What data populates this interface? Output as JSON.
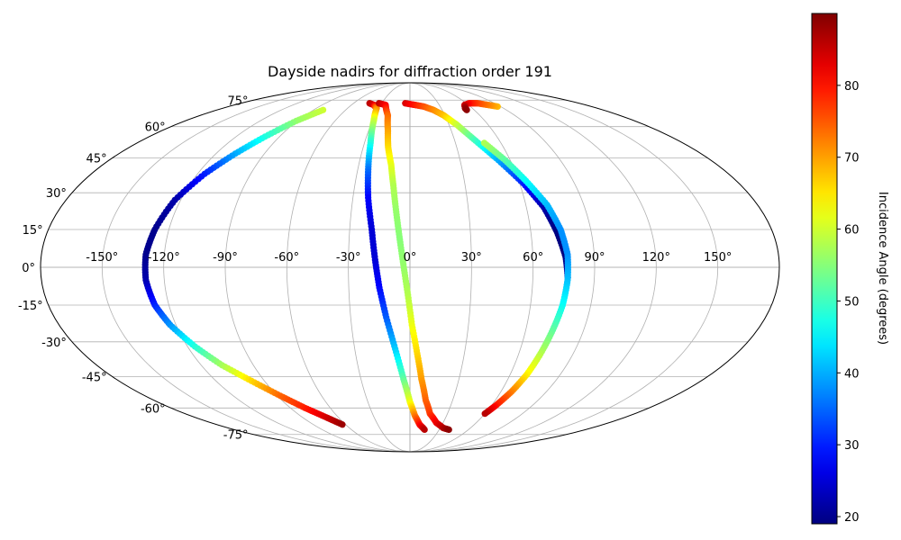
{
  "chart_data": {
    "type": "scatter",
    "projection": "mollweide",
    "title": "Dayside nadirs for diffraction order 191",
    "xlabel": "",
    "ylabel": "",
    "xlim": [
      -180,
      180
    ],
    "ylim": [
      -90,
      90
    ],
    "grid": true,
    "x_ticks": [
      -150,
      -120,
      -90,
      -60,
      -30,
      0,
      30,
      60,
      90,
      120,
      150
    ],
    "x_tick_labels": [
      "-150°",
      "-120°",
      "-90°",
      "-60°",
      "-30°",
      "0°",
      "30°",
      "60°",
      "90°",
      "120°",
      "150°"
    ],
    "y_ticks": [
      75,
      60,
      45,
      30,
      15,
      0,
      -15,
      -30,
      -45,
      -60,
      -75
    ],
    "y_tick_labels": [
      "75°",
      "60°",
      "45°",
      "30°",
      "15°",
      "0°",
      "-15°",
      "-30°",
      "-45°",
      "-60°",
      "-75°"
    ],
    "colormap": "jet",
    "colorbar": {
      "label": "Incidence Angle (degrees)",
      "range": [
        19,
        90
      ],
      "ticks": [
        20,
        30,
        40,
        50,
        60,
        70,
        80
      ],
      "tick_labels": [
        "20",
        "30",
        "40",
        "50",
        "60",
        "70",
        "80"
      ]
    },
    "series": [
      {
        "points": [
          {
            "lon": -81,
            "lat": 69,
            "inc": 60
          },
          {
            "lon": -91,
            "lat": 63,
            "inc": 56
          },
          {
            "lon": -100,
            "lat": 55,
            "inc": 48
          },
          {
            "lon": -108,
            "lat": 47,
            "inc": 40
          },
          {
            "lon": -116,
            "lat": 38,
            "inc": 30
          },
          {
            "lon": -123,
            "lat": 27,
            "inc": 22
          },
          {
            "lon": -127,
            "lat": 15,
            "inc": 20
          },
          {
            "lon": -129,
            "lat": 5,
            "inc": 20
          },
          {
            "lon": -129,
            "lat": -5,
            "inc": 22
          },
          {
            "lon": -127,
            "lat": -15,
            "inc": 30
          },
          {
            "lon": -123,
            "lat": -23,
            "inc": 38
          },
          {
            "lon": -116,
            "lat": -32,
            "inc": 48
          },
          {
            "lon": -108,
            "lat": -40,
            "inc": 57
          },
          {
            "lon": -98,
            "lat": -47,
            "inc": 66
          },
          {
            "lon": -88,
            "lat": -54,
            "inc": 74
          },
          {
            "lon": -79,
            "lat": -60,
            "inc": 79
          },
          {
            "lon": -70,
            "lat": -65,
            "inc": 84
          },
          {
            "lon": -63,
            "lat": -69,
            "inc": 88
          }
        ]
      },
      {
        "points": [
          {
            "lon": -43,
            "lat": 73,
            "inc": 86
          },
          {
            "lon": -37,
            "lat": 72,
            "inc": 84
          },
          {
            "lon": -32,
            "lat": 70,
            "inc": 72
          },
          {
            "lon": -29,
            "lat": 63,
            "inc": 60
          },
          {
            "lon": -26,
            "lat": 52,
            "inc": 48
          },
          {
            "lon": -24,
            "lat": 40,
            "inc": 36
          },
          {
            "lon": -22,
            "lat": 28,
            "inc": 28
          },
          {
            "lon": -19,
            "lat": 15,
            "inc": 25
          },
          {
            "lon": -17,
            "lat": 3,
            "inc": 25
          },
          {
            "lon": -15,
            "lat": -8,
            "inc": 28
          },
          {
            "lon": -12,
            "lat": -20,
            "inc": 34
          },
          {
            "lon": -8,
            "lat": -33,
            "inc": 42
          },
          {
            "lon": -4,
            "lat": -46,
            "inc": 52
          },
          {
            "lon": 0,
            "lat": -57,
            "inc": 62
          },
          {
            "lon": 4,
            "lat": -64,
            "inc": 72
          },
          {
            "lon": 9,
            "lat": -69,
            "inc": 80
          },
          {
            "lon": 15,
            "lat": -72,
            "inc": 86
          }
        ]
      },
      {
        "points": [
          {
            "lon": -33,
            "lat": 73,
            "inc": 86
          },
          {
            "lon": -25,
            "lat": 72,
            "inc": 82
          },
          {
            "lon": -19,
            "lat": 66,
            "inc": 74
          },
          {
            "lon": -16,
            "lat": 58,
            "inc": 70
          },
          {
            "lon": -14,
            "lat": 50,
            "inc": 66
          },
          {
            "lon": -11,
            "lat": 42,
            "inc": 62
          },
          {
            "lon": -9,
            "lat": 33,
            "inc": 58
          },
          {
            "lon": -7,
            "lat": 22,
            "inc": 56
          },
          {
            "lon": -5,
            "lat": 11,
            "inc": 55
          },
          {
            "lon": -3,
            "lat": 0,
            "inc": 56
          },
          {
            "lon": -1,
            "lat": -11,
            "inc": 58
          },
          {
            "lon": 1,
            "lat": -23,
            "inc": 62
          },
          {
            "lon": 4,
            "lat": -35,
            "inc": 66
          },
          {
            "lon": 7,
            "lat": -46,
            "inc": 70
          },
          {
            "lon": 11,
            "lat": -56,
            "inc": 74
          },
          {
            "lon": 16,
            "lat": -63,
            "inc": 77
          },
          {
            "lon": 24,
            "lat": -68,
            "inc": 82
          },
          {
            "lon": 33,
            "lat": -71,
            "inc": 86
          },
          {
            "lon": 40,
            "lat": -72,
            "inc": 89
          }
        ]
      },
      {
        "points": [
          {
            "lon": -5,
            "lat": 73,
            "inc": 84
          },
          {
            "lon": 5,
            "lat": 72,
            "inc": 80
          },
          {
            "lon": 14,
            "lat": 71,
            "inc": 76
          },
          {
            "lon": 22,
            "lat": 69,
            "inc": 72
          },
          {
            "lon": 29,
            "lat": 66,
            "inc": 68
          },
          {
            "lon": 36,
            "lat": 61,
            "inc": 60
          },
          {
            "lon": 44,
            "lat": 53,
            "inc": 50
          },
          {
            "lon": 53,
            "lat": 44,
            "inc": 40
          },
          {
            "lon": 62,
            "lat": 34,
            "inc": 30
          },
          {
            "lon": 69,
            "lat": 24,
            "inc": 22
          },
          {
            "lon": 73,
            "lat": 14,
            "inc": 19
          },
          {
            "lon": 76,
            "lat": 4,
            "inc": 19
          },
          {
            "lon": 77,
            "lat": -4,
            "inc": 22
          }
        ]
      },
      {
        "points": [
          {
            "lon": 49,
            "lat": 52,
            "inc": 58
          },
          {
            "lon": 57,
            "lat": 44,
            "inc": 52
          },
          {
            "lon": 64,
            "lat": 35,
            "inc": 46
          },
          {
            "lon": 71,
            "lat": 25,
            "inc": 41
          },
          {
            "lon": 75,
            "lat": 15,
            "inc": 38
          },
          {
            "lon": 77,
            "lat": 5,
            "inc": 38
          },
          {
            "lon": 77,
            "lat": -5,
            "inc": 41
          },
          {
            "lon": 76,
            "lat": -15,
            "inc": 46
          },
          {
            "lon": 74,
            "lat": -25,
            "inc": 52
          },
          {
            "lon": 72,
            "lat": -35,
            "inc": 58
          },
          {
            "lon": 70,
            "lat": -44,
            "inc": 64
          },
          {
            "lon": 67,
            "lat": -52,
            "inc": 72
          },
          {
            "lon": 63,
            "lat": -59,
            "inc": 80
          },
          {
            "lon": 60,
            "lat": -63,
            "inc": 86
          }
        ]
      },
      {
        "points": [
          {
            "lon": 87,
            "lat": 71,
            "inc": 68
          },
          {
            "lon": 80,
            "lat": 72,
            "inc": 72
          },
          {
            "lon": 72,
            "lat": 73,
            "inc": 76
          },
          {
            "lon": 63,
            "lat": 73,
            "inc": 80
          },
          {
            "lon": 56,
            "lat": 72,
            "inc": 84
          },
          {
            "lon": 53,
            "lat": 70,
            "inc": 88
          },
          {
            "lon": 53,
            "lat": 69,
            "inc": 89
          }
        ]
      }
    ]
  }
}
